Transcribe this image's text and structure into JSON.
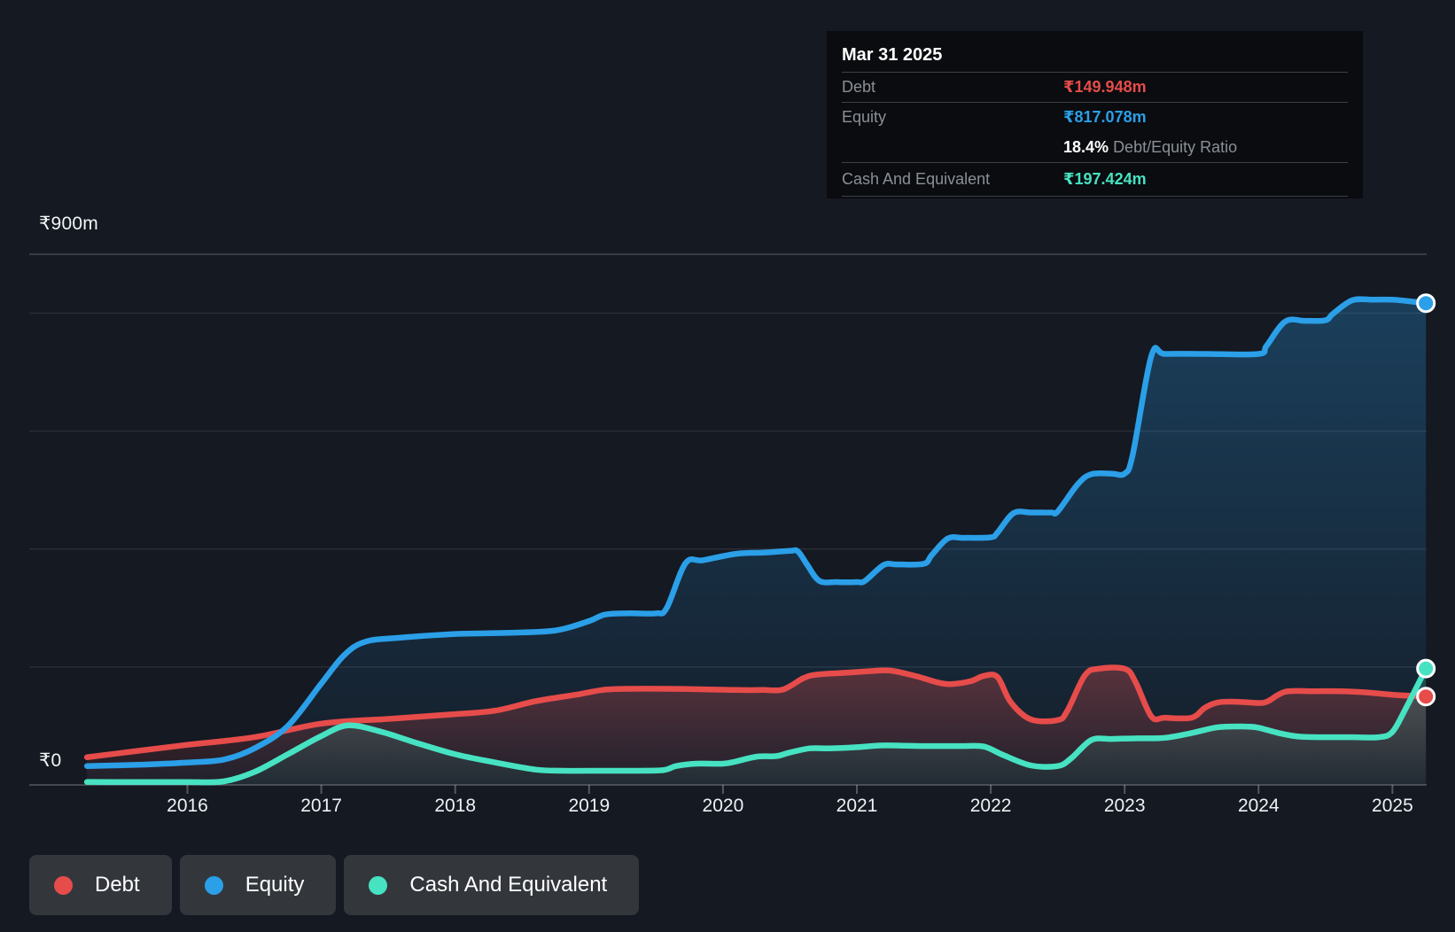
{
  "page": {
    "background": "#141922"
  },
  "colors": {
    "debt": "#e64c4a",
    "equity": "#2b9fe8",
    "cash": "#47e2c2",
    "label_gray": "#8b9096",
    "axis_text": "#eef1f3",
    "grid_faint": "rgba(255,255,255,0.09)",
    "grid_top": "rgba(255,255,255,0.20)",
    "baseline": "rgba(255,255,255,0.28)"
  },
  "header_tooltip": {
    "date": "Mar 31 2025",
    "rows": [
      {
        "label": "Debt",
        "value": "₹149.948m",
        "series": "debt"
      },
      {
        "label": "Equity",
        "value": "₹817.078m",
        "series": "equity"
      },
      {
        "label": "Cash And Equivalent",
        "value": "₹197.424m",
        "series": "cash"
      }
    ],
    "ratio_value": "18.4%",
    "ratio_label": "Debt/Equity Ratio"
  },
  "y_axis": {
    "max_label": "₹900m",
    "zero_label": "₹0"
  },
  "x_axis": {
    "years": [
      "2016",
      "2017",
      "2018",
      "2019",
      "2020",
      "2021",
      "2022",
      "2023",
      "2024",
      "2025"
    ]
  },
  "legend": {
    "items": [
      {
        "label": "Debt",
        "series": "debt"
      },
      {
        "label": "Equity",
        "series": "equity"
      },
      {
        "label": "Cash And Equivalent",
        "series": "cash"
      }
    ]
  },
  "chart_data": {
    "type": "area",
    "title": "Debt Equity and Cash history",
    "unit": "₹ millions",
    "ylim": [
      0,
      900
    ],
    "x_domain_years": [
      2015.25,
      2025.25
    ],
    "gridlines_minor": [
      200,
      400,
      600,
      800
    ],
    "gridline_top": 900,
    "grid": true,
    "legend_position": "bottom-left",
    "latest": {
      "date": "Mar 31 2025",
      "debt": 149.948,
      "equity": 817.078,
      "cash": 197.424,
      "debt_equity_ratio_pct": 18.4
    },
    "series": [
      {
        "name": "Equity",
        "key": "equity",
        "color": "#2b9fe8",
        "fill_top": "rgba(41,150,224,0.30)",
        "fill_bottom": "rgba(41,150,224,0.04)",
        "points": [
          [
            2015.25,
            32
          ],
          [
            2015.6,
            34
          ],
          [
            2016.0,
            38
          ],
          [
            2016.27,
            43
          ],
          [
            2016.5,
            62
          ],
          [
            2016.75,
            100
          ],
          [
            2017.0,
            172
          ],
          [
            2017.17,
            220
          ],
          [
            2017.33,
            243
          ],
          [
            2017.6,
            250
          ],
          [
            2018.0,
            256
          ],
          [
            2018.4,
            258
          ],
          [
            2018.75,
            262
          ],
          [
            2019.0,
            278
          ],
          [
            2019.12,
            289
          ],
          [
            2019.3,
            291
          ],
          [
            2019.5,
            291
          ],
          [
            2019.58,
            300
          ],
          [
            2019.72,
            376
          ],
          [
            2019.85,
            381
          ],
          [
            2020.1,
            392
          ],
          [
            2020.3,
            394
          ],
          [
            2020.5,
            397
          ],
          [
            2020.56,
            396
          ],
          [
            2020.63,
            373
          ],
          [
            2020.72,
            346
          ],
          [
            2020.85,
            344
          ],
          [
            2021.0,
            344
          ],
          [
            2021.06,
            346
          ],
          [
            2021.2,
            373
          ],
          [
            2021.3,
            374
          ],
          [
            2021.5,
            375
          ],
          [
            2021.56,
            390
          ],
          [
            2021.68,
            418
          ],
          [
            2021.8,
            419
          ],
          [
            2022.0,
            420
          ],
          [
            2022.05,
            428
          ],
          [
            2022.17,
            461
          ],
          [
            2022.3,
            462
          ],
          [
            2022.45,
            462
          ],
          [
            2022.5,
            464
          ],
          [
            2022.65,
            510
          ],
          [
            2022.75,
            527
          ],
          [
            2022.9,
            528
          ],
          [
            2023.0,
            528
          ],
          [
            2023.06,
            560
          ],
          [
            2023.2,
            728
          ],
          [
            2023.3,
            731
          ],
          [
            2023.6,
            731
          ],
          [
            2024.0,
            731
          ],
          [
            2024.06,
            745
          ],
          [
            2024.2,
            786
          ],
          [
            2024.35,
            787
          ],
          [
            2024.5,
            788
          ],
          [
            2024.56,
            800
          ],
          [
            2024.7,
            822
          ],
          [
            2024.85,
            823
          ],
          [
            2025.0,
            823
          ],
          [
            2025.1,
            821
          ],
          [
            2025.25,
            817.078
          ]
        ]
      },
      {
        "name": "Debt",
        "key": "debt",
        "color": "#e64c4a",
        "fill_top": "rgba(230,76,74,0.32)",
        "fill_bottom": "rgba(230,76,74,0.05)",
        "points": [
          [
            2015.25,
            47
          ],
          [
            2015.6,
            57
          ],
          [
            2016.0,
            68
          ],
          [
            2016.5,
            81
          ],
          [
            2017.0,
            104
          ],
          [
            2017.5,
            112
          ],
          [
            2018.0,
            120
          ],
          [
            2018.3,
            126
          ],
          [
            2018.6,
            142
          ],
          [
            2018.9,
            153
          ],
          [
            2019.1,
            161
          ],
          [
            2019.3,
            163
          ],
          [
            2019.6,
            163
          ],
          [
            2019.9,
            162
          ],
          [
            2020.1,
            161
          ],
          [
            2020.3,
            161
          ],
          [
            2020.45,
            162
          ],
          [
            2020.6,
            181
          ],
          [
            2020.7,
            187
          ],
          [
            2020.9,
            190
          ],
          [
            2021.1,
            193
          ],
          [
            2021.25,
            194
          ],
          [
            2021.45,
            184
          ],
          [
            2021.6,
            174
          ],
          [
            2021.7,
            171
          ],
          [
            2021.85,
            176
          ],
          [
            2021.95,
            185
          ],
          [
            2022.05,
            183
          ],
          [
            2022.15,
            140
          ],
          [
            2022.3,
            111
          ],
          [
            2022.5,
            110
          ],
          [
            2022.57,
            125
          ],
          [
            2022.7,
            185
          ],
          [
            2022.8,
            197
          ],
          [
            2023.0,
            197
          ],
          [
            2023.08,
            175
          ],
          [
            2023.2,
            116
          ],
          [
            2023.3,
            114
          ],
          [
            2023.5,
            114
          ],
          [
            2023.6,
            131
          ],
          [
            2023.7,
            140
          ],
          [
            2023.85,
            141
          ],
          [
            2024.0,
            139
          ],
          [
            2024.07,
            142
          ],
          [
            2024.2,
            158
          ],
          [
            2024.4,
            159
          ],
          [
            2024.6,
            159
          ],
          [
            2024.8,
            157
          ],
          [
            2025.0,
            153
          ],
          [
            2025.25,
            149.948
          ]
        ]
      },
      {
        "name": "Cash And Equivalent",
        "key": "cash",
        "color": "#47e2c2",
        "fill_top": "rgba(71,226,194,0.22)",
        "fill_bottom": "rgba(71,226,194,0.05)",
        "points": [
          [
            2015.25,
            5
          ],
          [
            2015.7,
            5
          ],
          [
            2016.0,
            5
          ],
          [
            2016.27,
            6
          ],
          [
            2016.5,
            22
          ],
          [
            2016.75,
            52
          ],
          [
            2017.0,
            83
          ],
          [
            2017.2,
            101
          ],
          [
            2017.45,
            90
          ],
          [
            2017.7,
            72
          ],
          [
            2018.0,
            52
          ],
          [
            2018.3,
            38
          ],
          [
            2018.6,
            26
          ],
          [
            2018.8,
            24
          ],
          [
            2019.1,
            24
          ],
          [
            2019.3,
            24
          ],
          [
            2019.55,
            25
          ],
          [
            2019.65,
            32
          ],
          [
            2019.8,
            36
          ],
          [
            2020.0,
            36
          ],
          [
            2020.1,
            40
          ],
          [
            2020.25,
            48
          ],
          [
            2020.4,
            49
          ],
          [
            2020.5,
            55
          ],
          [
            2020.65,
            62
          ],
          [
            2020.8,
            62
          ],
          [
            2021.0,
            64
          ],
          [
            2021.2,
            67
          ],
          [
            2021.5,
            66
          ],
          [
            2021.8,
            66
          ],
          [
            2021.95,
            65
          ],
          [
            2022.1,
            50
          ],
          [
            2022.3,
            33
          ],
          [
            2022.5,
            32
          ],
          [
            2022.6,
            45
          ],
          [
            2022.75,
            76
          ],
          [
            2022.9,
            78
          ],
          [
            2023.1,
            79
          ],
          [
            2023.3,
            80
          ],
          [
            2023.5,
            88
          ],
          [
            2023.7,
            98
          ],
          [
            2023.9,
            99
          ],
          [
            2024.0,
            97
          ],
          [
            2024.15,
            88
          ],
          [
            2024.3,
            82
          ],
          [
            2024.5,
            81
          ],
          [
            2024.7,
            81
          ],
          [
            2024.9,
            81
          ],
          [
            2025.0,
            90
          ],
          [
            2025.1,
            130
          ],
          [
            2025.25,
            197.424
          ]
        ]
      }
    ]
  }
}
